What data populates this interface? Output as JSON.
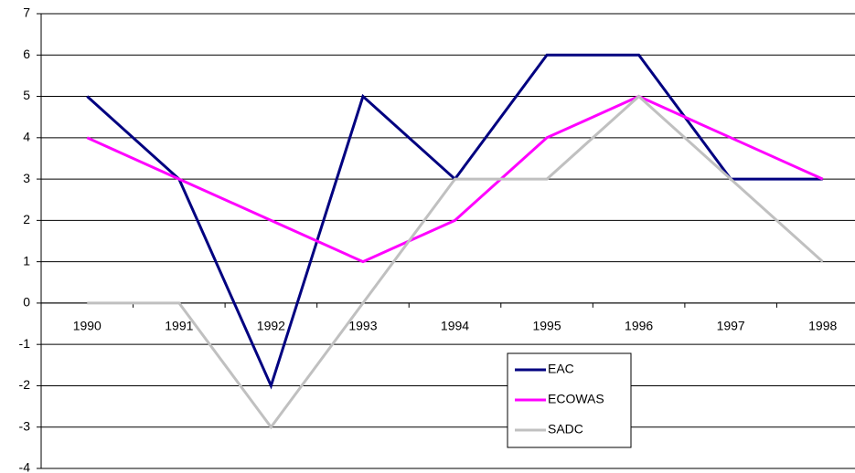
{
  "chart_data": {
    "type": "line",
    "categories": [
      "1990",
      "1991",
      "1992",
      "1993",
      "1994",
      "1995",
      "1996",
      "1997",
      "1998"
    ],
    "series": [
      {
        "name": "EAC",
        "color": "#000080",
        "values": [
          5,
          3,
          -2,
          5,
          3,
          6,
          6,
          3,
          3
        ]
      },
      {
        "name": "ECOWAS",
        "color": "#ff00ff",
        "values": [
          4,
          3,
          2,
          1,
          2,
          4,
          5,
          4,
          3
        ]
      },
      {
        "name": "SADC",
        "color": "#c0c0c0",
        "values": [
          0,
          0,
          -3,
          0,
          3,
          3,
          5,
          3,
          1
        ]
      }
    ],
    "ylim": [
      -4,
      7
    ],
    "yticks": [
      -4,
      -3,
      -2,
      -1,
      0,
      1,
      2,
      3,
      4,
      5,
      6,
      7
    ],
    "grid": true
  }
}
